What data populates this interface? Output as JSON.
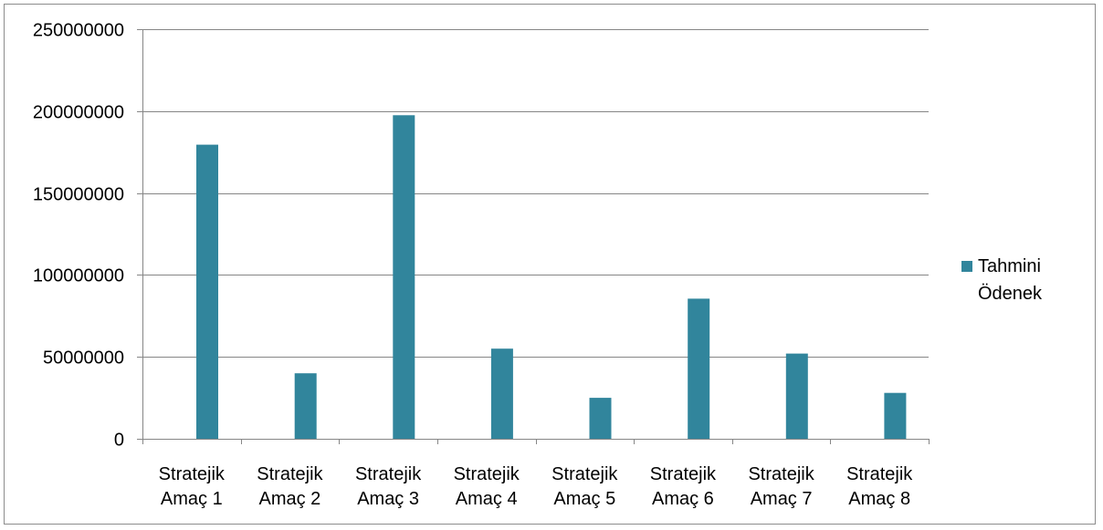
{
  "chart_data": {
    "type": "bar",
    "title": "",
    "xlabel": "",
    "ylabel": "",
    "categories": [
      [
        "Stratejik",
        "Amaç 1"
      ],
      [
        "Stratejik",
        "Amaç 2"
      ],
      [
        "Stratejik",
        "Amaç 3"
      ],
      [
        "Stratejik",
        "Amaç 4"
      ],
      [
        "Stratejik",
        "Amaç 5"
      ],
      [
        "Stratejik",
        "Amaç 6"
      ],
      [
        "Stratejik",
        "Amaç 7"
      ],
      [
        "Stratejik",
        "Amaç 8"
      ]
    ],
    "series": [
      {
        "name": "Tahmini Ödenek",
        "legend_lines": [
          "Tahmini",
          "Ödenek"
        ],
        "values": [
          179500000,
          40000000,
          197500000,
          55000000,
          25000000,
          85500000,
          52000000,
          28000000
        ],
        "color": "#31859c"
      }
    ],
    "ylim": [
      0,
      250000000
    ],
    "yticks": [
      "0",
      "50000000",
      "100000000",
      "150000000",
      "200000000",
      "250000000"
    ],
    "ytick_values": [
      0,
      50000000,
      100000000,
      150000000,
      200000000,
      250000000
    ],
    "grid": true,
    "grid_color": "#868686",
    "axis_color": "#868686",
    "legend_position": "right"
  }
}
